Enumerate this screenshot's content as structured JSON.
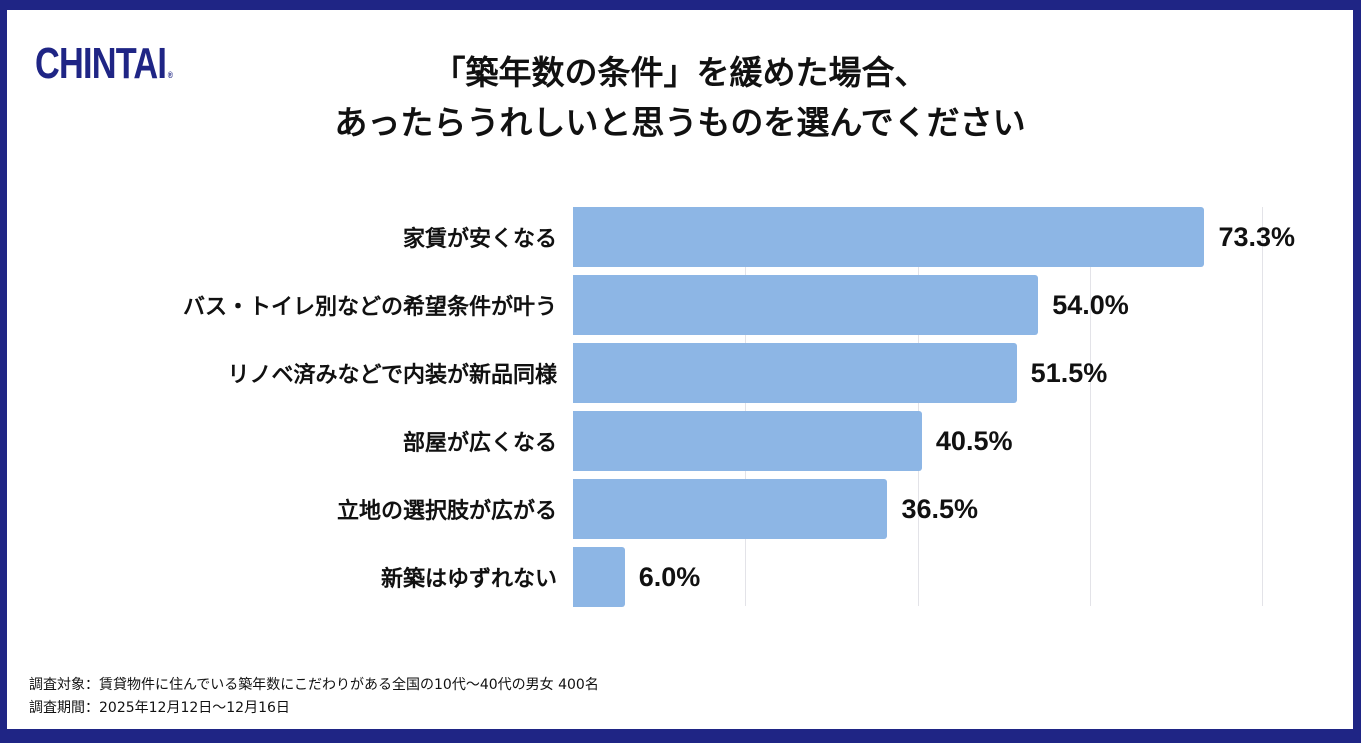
{
  "brand": {
    "logo_text": "CHINTAI",
    "registered": "®",
    "color": "#1f2585"
  },
  "title": {
    "line1": "「築年数の条件」を緩めた場合、",
    "line2": "あったらうれしいと思うものを選んでください"
  },
  "footnotes": {
    "target": "調査対象：賃貸物件に住んでいる築年数にこだわりがある全国の10代〜40代の男女 400名",
    "period": "調査期間：2025年12月12日〜12月16日"
  },
  "colors": {
    "bar": "#8db6e5",
    "frame": "#1f2585",
    "grid": "#e3e3e8"
  },
  "chart_data": {
    "type": "bar",
    "orientation": "horizontal",
    "title": "「築年数の条件」を緩めた場合、あったらうれしいと思うものを選んでください",
    "categories": [
      "家賃が安くなる",
      "バス・トイレ別などの希望条件が叶う",
      "リノベ済みなどで内装が新品同様",
      "部屋が広くなる",
      "立地の選択肢が広がる",
      "新築はゆずれない"
    ],
    "values": [
      73.3,
      54.0,
      51.5,
      40.5,
      36.5,
      6.0
    ],
    "value_labels": [
      "73.3%",
      "54.0%",
      "51.5%",
      "40.5%",
      "36.5%",
      "6.0%"
    ],
    "xlabel": "",
    "ylabel": "",
    "xlim": [
      0,
      80
    ],
    "gridlines": [
      20,
      40,
      60,
      80
    ],
    "grid": true,
    "legend": "none",
    "unit": "%"
  }
}
